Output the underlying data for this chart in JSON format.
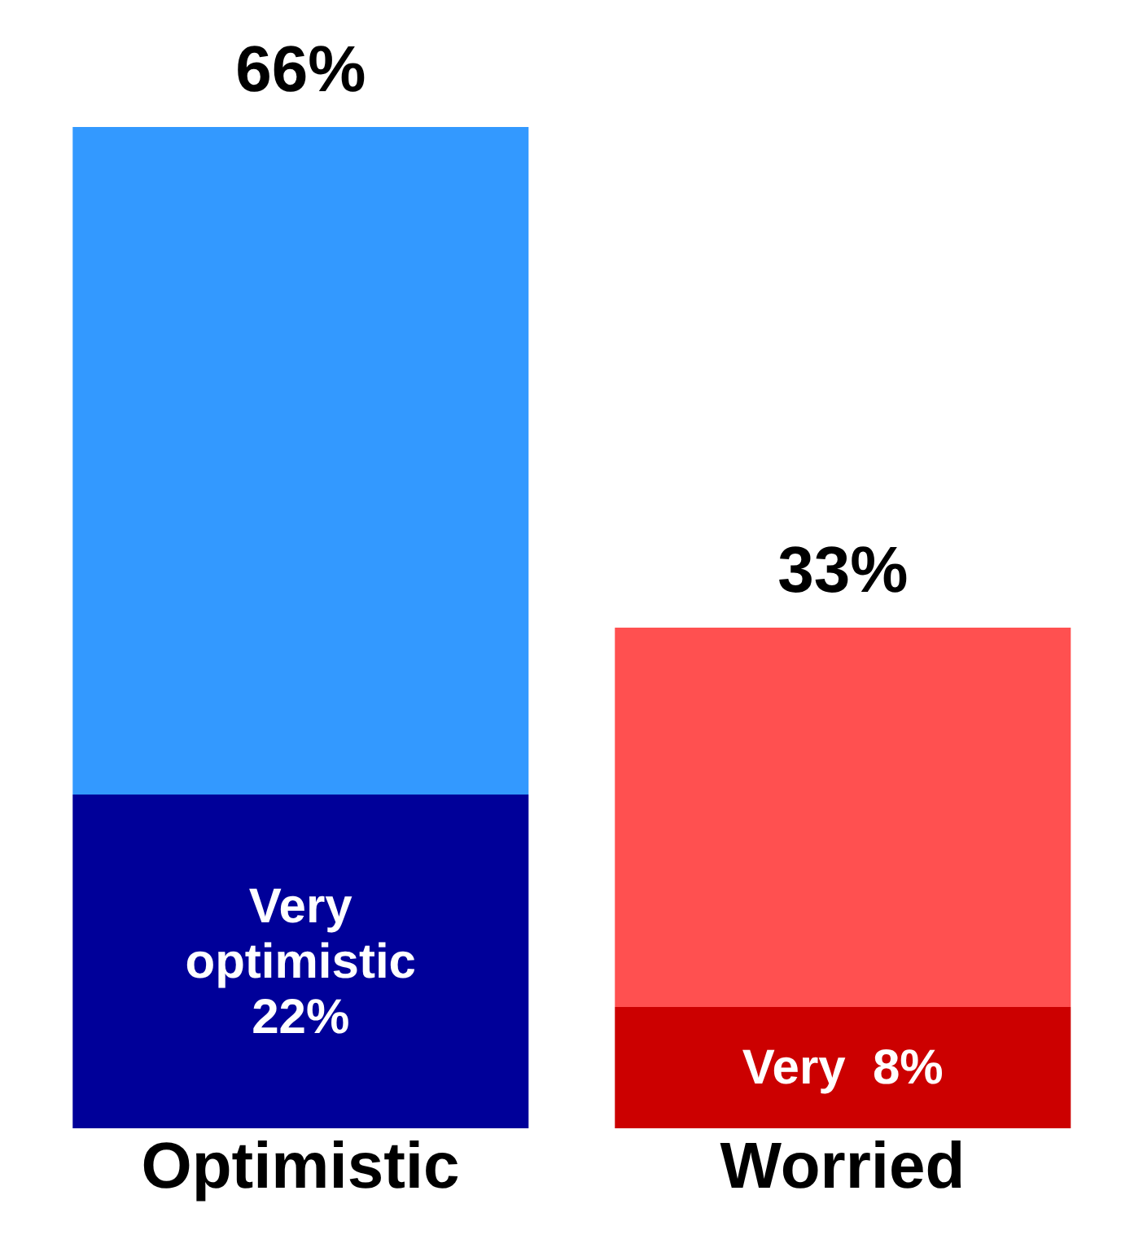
{
  "chart_data": {
    "type": "bar",
    "stacked": true,
    "relative": false,
    "categories": [
      "Optimistic",
      "Worried"
    ],
    "series": [
      {
        "colors": [
          "#000099",
          "#cc0000"
        ],
        "values": [
          22,
          8
        ],
        "value_labels": [
          "Very optimistic 22%",
          "Very  8%"
        ]
      },
      {
        "colors": [
          "#3399ff",
          "#ff5050"
        ],
        "values": [
          44,
          25
        ]
      }
    ],
    "totals": [
      "66%",
      "33%"
    ]
  }
}
